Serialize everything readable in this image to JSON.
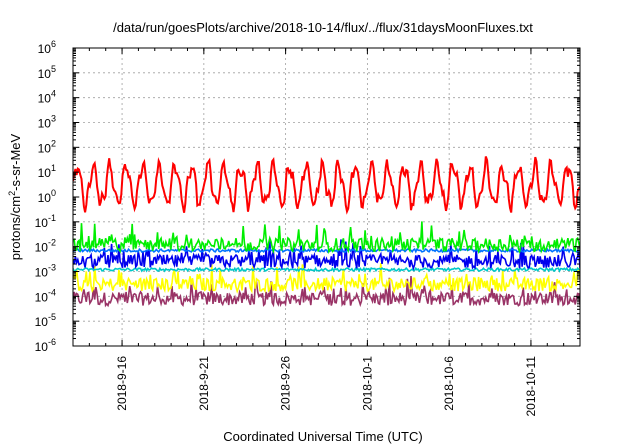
{
  "chart_data": {
    "type": "line",
    "title": "/data/run/goesPlots/archive/2018-10-14/flux/../flux/31daysMoonFluxes.txt",
    "xlabel": "Coordinated Universal Time (UTC)",
    "ylabel_parts": [
      "protons/cm",
      "2",
      "-s-sr-MeV"
    ],
    "y_scale": "log",
    "ylim": [
      1e-06,
      1000000.0
    ],
    "y_ticks": [
      {
        "base": "10",
        "exp": "-6",
        "value": 1e-06
      },
      {
        "base": "10",
        "exp": "-5",
        "value": 1e-05
      },
      {
        "base": "10",
        "exp": "-4",
        "value": 0.0001
      },
      {
        "base": "10",
        "exp": "-3",
        "value": 0.001
      },
      {
        "base": "10",
        "exp": "-2",
        "value": 0.01
      },
      {
        "base": "10",
        "exp": "-1",
        "value": 0.1
      },
      {
        "base": "10",
        "exp": "0",
        "value": 1
      },
      {
        "base": "10",
        "exp": "1",
        "value": 10
      },
      {
        "base": "10",
        "exp": "2",
        "value": 100
      },
      {
        "base": "10",
        "exp": "3",
        "value": 1000
      },
      {
        "base": "10",
        "exp": "4",
        "value": 10000
      },
      {
        "base": "10",
        "exp": "5",
        "value": 100000
      },
      {
        "base": "10",
        "exp": "6",
        "value": 1000000
      }
    ],
    "x_range": [
      "2018-09-13",
      "2018-10-14"
    ],
    "x_ticks": [
      {
        "label": "2018-9-16",
        "date": "2018-09-16"
      },
      {
        "label": "2018-9-21",
        "date": "2018-09-21"
      },
      {
        "label": "2018-9-26",
        "date": "2018-09-26"
      },
      {
        "label": "2018-10-1",
        "date": "2018-10-01"
      },
      {
        "label": "2018-10-6",
        "date": "2018-10-06"
      },
      {
        "label": "2018-10-11",
        "date": "2018-10-11"
      }
    ],
    "grid": true,
    "series": [
      {
        "color": "#ff0000",
        "median": 3,
        "variation": "daily oscillation between about 0.2 and 40, peaks to about 60"
      },
      {
        "color": "#00ee00",
        "median": 0.012,
        "variation": "spiky, range about 0.005 to 0.1"
      },
      {
        "color": "#0072ff",
        "median": 0.007,
        "variation": "near-constant, about 0.006 to 0.01"
      },
      {
        "color": "#0000ee",
        "median": 0.0025,
        "variation": "noisy, range about 0.0012 to 0.008"
      },
      {
        "color": "#00c8c8",
        "median": 0.0012,
        "variation": "near-constant, about 0.001 to 0.0015"
      },
      {
        "color": "#ffff00",
        "median": 0.0003,
        "variation": "noisy, range about 0.0001 to 0.0008"
      },
      {
        "color": "#993366",
        "median": 8e-05,
        "variation": "noisy, range about 0.00003 to 0.0003"
      }
    ]
  }
}
